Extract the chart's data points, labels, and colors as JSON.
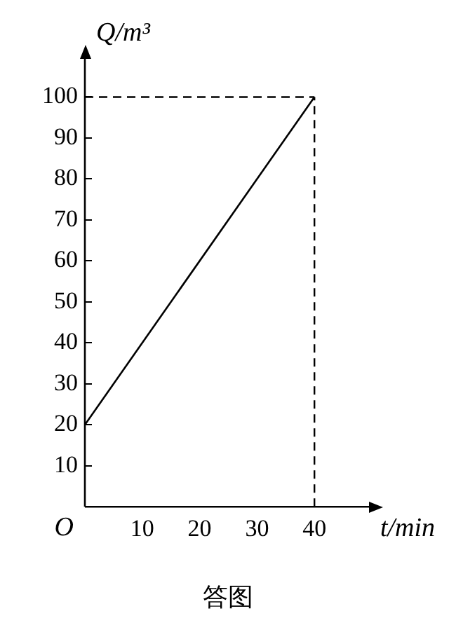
{
  "chart_data": {
    "type": "line",
    "xlabel": "t/min",
    "ylabel": "Q/m³",
    "x": [
      0,
      40
    ],
    "values": [
      20,
      100
    ],
    "color": "#000000",
    "xlim": [
      0,
      50
    ],
    "ylim": [
      0,
      110
    ],
    "xticks": [
      10,
      20,
      30,
      40
    ],
    "yticks": [
      10,
      20,
      30,
      40,
      50,
      60,
      70,
      80,
      90,
      100
    ],
    "grid": false,
    "legend": false,
    "marker": "none",
    "line_style": "solid",
    "ref_lines": [
      {
        "axis": "y",
        "value": 100,
        "line_style": "dashed",
        "color": "#000000"
      },
      {
        "axis": "x",
        "value": 40,
        "line_style": "dashed",
        "color": "#000000"
      }
    ],
    "annotations": [
      "O",
      "答图"
    ]
  }
}
